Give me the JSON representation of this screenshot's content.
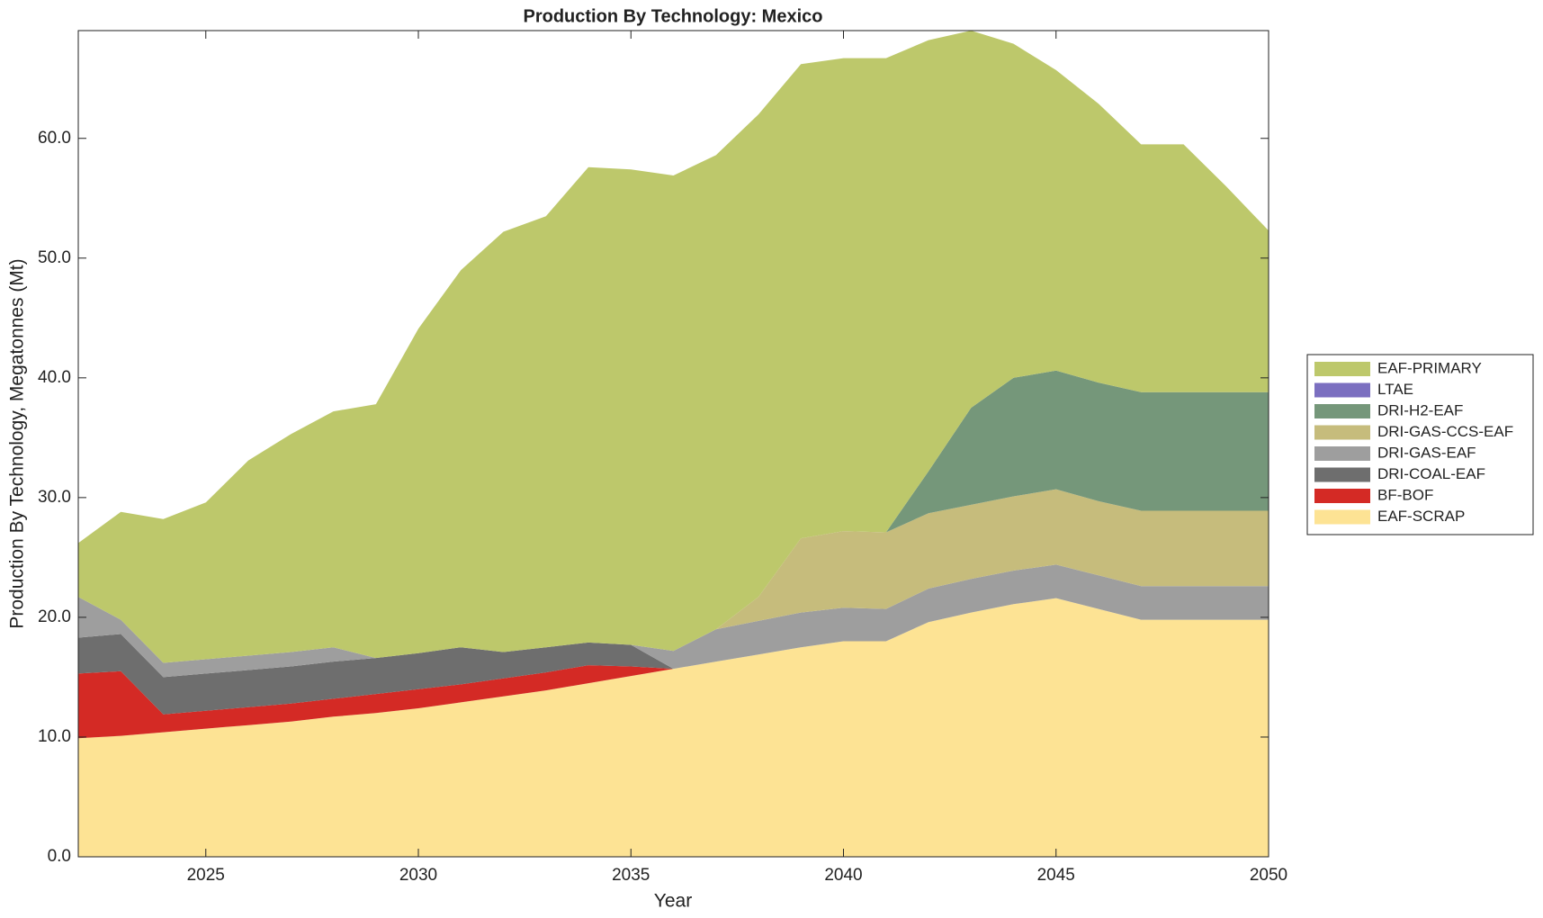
{
  "chart_data": {
    "type": "stacked-area",
    "title": "Production By Technology: Mexico",
    "x_label": "Year",
    "y_label": "Production By Technology, Megatonnes (Mt)",
    "x": [
      2022,
      2023,
      2024,
      2025,
      2026,
      2027,
      2028,
      2029,
      2030,
      2031,
      2032,
      2033,
      2034,
      2035,
      2036,
      2037,
      2038,
      2039,
      2040,
      2041,
      2042,
      2043,
      2044,
      2045,
      2046,
      2047,
      2048,
      2049,
      2050
    ],
    "xlim": [
      2022,
      2050
    ],
    "xticks": [
      2025,
      2030,
      2035,
      2040,
      2045,
      2050
    ],
    "ylim": [
      0,
      69
    ],
    "yticks": [
      {
        "value": 0,
        "label": "0.0"
      },
      {
        "value": 10,
        "label": "10.0"
      },
      {
        "value": 20,
        "label": "20.0"
      },
      {
        "value": 30,
        "label": "30.0"
      },
      {
        "value": 40,
        "label": "40.0"
      },
      {
        "value": 50,
        "label": "50.0"
      },
      {
        "value": 60,
        "label": "60.0"
      }
    ],
    "legend": "right",
    "series": [
      {
        "name": "EAF-SCRAP",
        "color": "#fde394",
        "values": [
          9.9,
          10.1,
          10.4,
          10.7,
          11.0,
          11.3,
          11.7,
          12.0,
          12.4,
          12.9,
          13.4,
          13.9,
          14.5,
          15.1,
          15.7,
          16.3,
          16.9,
          17.5,
          18.0,
          18.0,
          19.6,
          20.4,
          21.1,
          21.6,
          20.7,
          19.8,
          19.8,
          19.8,
          19.8
        ]
      },
      {
        "name": "BF-BOF",
        "color": "#d42a25",
        "values": [
          5.4,
          5.4,
          1.5,
          1.5,
          1.5,
          1.5,
          1.5,
          1.6,
          1.6,
          1.5,
          1.5,
          1.5,
          1.5,
          0.8,
          0,
          0,
          0,
          0,
          0,
          0,
          0,
          0,
          0,
          0,
          0,
          0,
          0,
          0,
          0
        ]
      },
      {
        "name": "DRI-COAL-EAF",
        "color": "#6e6e6e",
        "values": [
          3.0,
          3.1,
          3.1,
          3.1,
          3.1,
          3.1,
          3.1,
          3.0,
          3.0,
          3.1,
          2.2,
          2.1,
          1.9,
          1.8,
          0,
          0,
          0,
          0,
          0,
          0,
          0,
          0,
          0,
          0,
          0,
          0,
          0,
          0,
          0
        ]
      },
      {
        "name": "DRI-GAS-EAF",
        "color": "#9e9e9e",
        "values": [
          3.4,
          1.2,
          1.2,
          1.2,
          1.2,
          1.2,
          1.2,
          0,
          0,
          0,
          0,
          0,
          0,
          0,
          1.5,
          2.7,
          2.8,
          2.9,
          2.8,
          2.7,
          2.8,
          2.8,
          2.8,
          2.8,
          2.8,
          2.8,
          2.8,
          2.8,
          2.8
        ]
      },
      {
        "name": "DRI-GAS-CCS-EAF",
        "color": "#c6bc7c",
        "values": [
          0,
          0,
          0,
          0,
          0,
          0,
          0,
          0,
          0,
          0,
          0,
          0,
          0,
          0,
          0,
          0,
          2.0,
          6.2,
          6.4,
          6.4,
          6.3,
          6.2,
          6.2,
          6.3,
          6.2,
          6.3,
          6.3,
          6.3,
          6.3
        ]
      },
      {
        "name": "DRI-H2-EAF",
        "color": "#75977a",
        "values": [
          0,
          0,
          0,
          0,
          0,
          0,
          0,
          0,
          0,
          0,
          0,
          0,
          0,
          0,
          0,
          0,
          0,
          0,
          0,
          0,
          3.5,
          8.1,
          9.9,
          9.9,
          9.9,
          9.9,
          9.9,
          9.9,
          9.9
        ]
      },
      {
        "name": "LTAE",
        "color": "#7b6fc0",
        "values": [
          0,
          0,
          0,
          0,
          0,
          0,
          0,
          0,
          0,
          0,
          0,
          0,
          0,
          0,
          0,
          0,
          0,
          0,
          0,
          0,
          0,
          0,
          0,
          0,
          0,
          0,
          0,
          0,
          0
        ]
      },
      {
        "name": "EAF-PRIMARY",
        "color": "#bdc86b",
        "values": [
          4.5,
          9.0,
          12.0,
          13.1,
          16.3,
          18.2,
          19.7,
          21.2,
          27.1,
          31.5,
          35.1,
          36.0,
          39.7,
          39.7,
          39.7,
          39.6,
          40.3,
          39.6,
          39.5,
          39.6,
          36.0,
          31.5,
          27.9,
          25.1,
          23.3,
          20.7,
          20.7,
          17.2,
          13.5
        ]
      }
    ]
  }
}
